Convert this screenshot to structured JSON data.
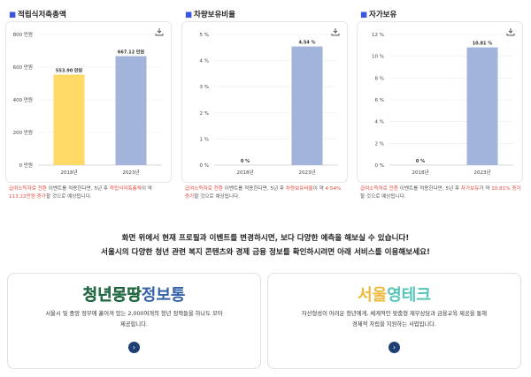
{
  "panels": [
    {
      "title": "적립식저축총액",
      "description_red1": "급여소득자로 전환",
      "description_mid": " 이벤트를 적용한다면, 5년 후 ",
      "description_red2": "적립식저축총액",
      "description_mid2": "이 약 ",
      "description_red3": "113.22만원 증가",
      "description_end": "할 것으로 예상됩니다.",
      "chart": {
        "type": "bar",
        "categories": [
          "2018년",
          "2023년"
        ],
        "values": [
          553.9,
          667.12
        ],
        "value_labels": [
          "553.90 만원",
          "667.12 만원"
        ],
        "colors": [
          "#ffd966",
          "#a3b4da"
        ],
        "ticks": [
          "0 만원",
          "200 만원",
          "400 만원",
          "600 만원",
          "800 만원"
        ],
        "ylim": [
          0,
          800
        ]
      }
    },
    {
      "title": "차량보유비율",
      "description_red1": "급여소득자로 전환",
      "description_mid": " 이벤트를 적용한다면, 5년 후 ",
      "description_red2": "차량보유비율",
      "description_mid2": "이 약 ",
      "description_red3": "4.54% 증가",
      "description_end": "할 것으로 예상됩니다.",
      "chart": {
        "type": "bar",
        "categories": [
          "2018년",
          "2023년"
        ],
        "values": [
          0,
          4.54
        ],
        "value_labels": [
          "0 %",
          "4.54 %"
        ],
        "colors": [
          "#ffd966",
          "#a3b4da"
        ],
        "ticks": [
          "0 %",
          "1 %",
          "2 %",
          "3 %",
          "4 %",
          "5 %"
        ],
        "ylim": [
          0,
          5
        ]
      }
    },
    {
      "title": "자가보유",
      "description_red1": "급여소득자로 전환",
      "description_mid": " 이벤트를 적용한다면, 5년 후 ",
      "description_red2": "자가보유",
      "description_mid2": "가 약 ",
      "description_red3": "10.81% 증가",
      "description_end": "할 것으로 예상됩니다.",
      "chart": {
        "type": "bar",
        "categories": [
          "2018년",
          "2023년"
        ],
        "values": [
          0,
          10.81
        ],
        "value_labels": [
          "0 %",
          "10.81 %"
        ],
        "colors": [
          "#ffd966",
          "#a3b4da"
        ],
        "ticks": [
          "0 %",
          "2 %",
          "4 %",
          "6 %",
          "8 %",
          "10 %",
          "12 %"
        ],
        "ylim": [
          0,
          12
        ]
      }
    }
  ],
  "hero": {
    "line1": "화면 위에서 현재 프로필과 이벤트를 변경하시면, 보다 다양한 예측을 해보실 수 있습니다!",
    "line2": "서울시의 다양한 청년 관련 복지 콘텐츠와 경제 금융 정보를 확인하시려면 아래 서비스를 이용해보세요!"
  },
  "promos": [
    {
      "logo_a": "청년몽땅",
      "logo_b": "정보통",
      "text1": "서울시 및 중앙 정부에 흩어져 있는 2,000여개의 청년 정책들을 하나도 모아",
      "text2": "제공합니다.",
      "button": "›"
    },
    {
      "logo_a": "서울",
      "logo_b": "영테크",
      "text1": "자산형성이 어려운 청년에게, 체계적인 맞춤형 재무상담과 금융교육 제공을 통해",
      "text2": "경제적 자립을 지원하는 사업입니다.",
      "button": "›"
    }
  ],
  "colors": {
    "accent_blue": "#3b55e0",
    "highlight_red": "#e5483f",
    "bar_2018": "#ffd966",
    "bar_2023": "#a3b4da",
    "button_navy": "#1d3f73"
  }
}
